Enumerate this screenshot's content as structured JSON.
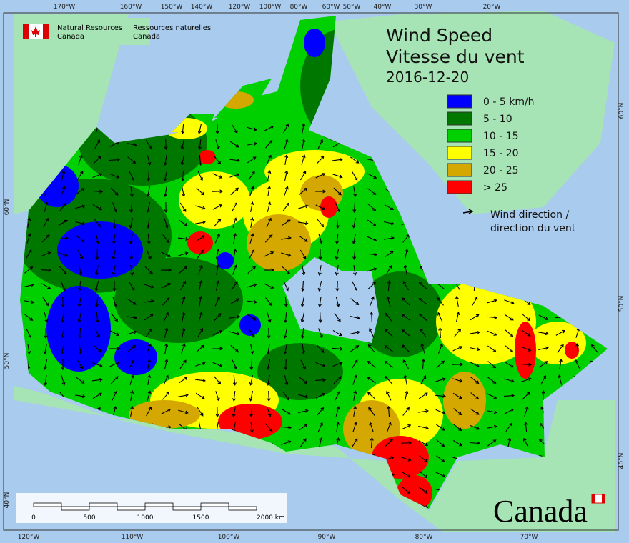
{
  "header": {
    "en_line1": "Natural Resources",
    "en_line2": "Canada",
    "fr_line1": "Ressources naturelles",
    "fr_line2": "Canada"
  },
  "title": "Wind Speed",
  "title_fr": "Vitesse du vent",
  "date": "2016-12-20",
  "legend": [
    {
      "label": "0 - 5 km/h",
      "color": "#0000ff"
    },
    {
      "label": "5 - 10",
      "color": "#007800"
    },
    {
      "label": "10 - 15",
      "color": "#00d000"
    },
    {
      "label": "15 - 20",
      "color": "#ffff00"
    },
    {
      "label": "20 - 25",
      "color": "#d4a800"
    },
    {
      "label": "> 25",
      "color": "#ff0000"
    }
  ],
  "direction_legend": [
    "Wind direction /",
    "direction du vent"
  ],
  "graticule": {
    "top": [
      "170°W",
      "160°W",
      "150°W",
      "140°W",
      "120°W",
      "100°W",
      "80°W",
      "60°W",
      "50°W",
      "40°W",
      "30°W",
      "20°W"
    ],
    "bottom": [
      "120°W",
      "110°W",
      "100°W",
      "90°W",
      "80°W",
      "70°W"
    ],
    "left": [
      "60°N",
      "50°N",
      "40°N"
    ],
    "right": [
      "60°N",
      "50°N",
      "40°N"
    ]
  },
  "scale_bar": [
    "0",
    "500",
    "1000",
    "1500",
    "2000 km"
  ],
  "wordmark": "Canada"
}
